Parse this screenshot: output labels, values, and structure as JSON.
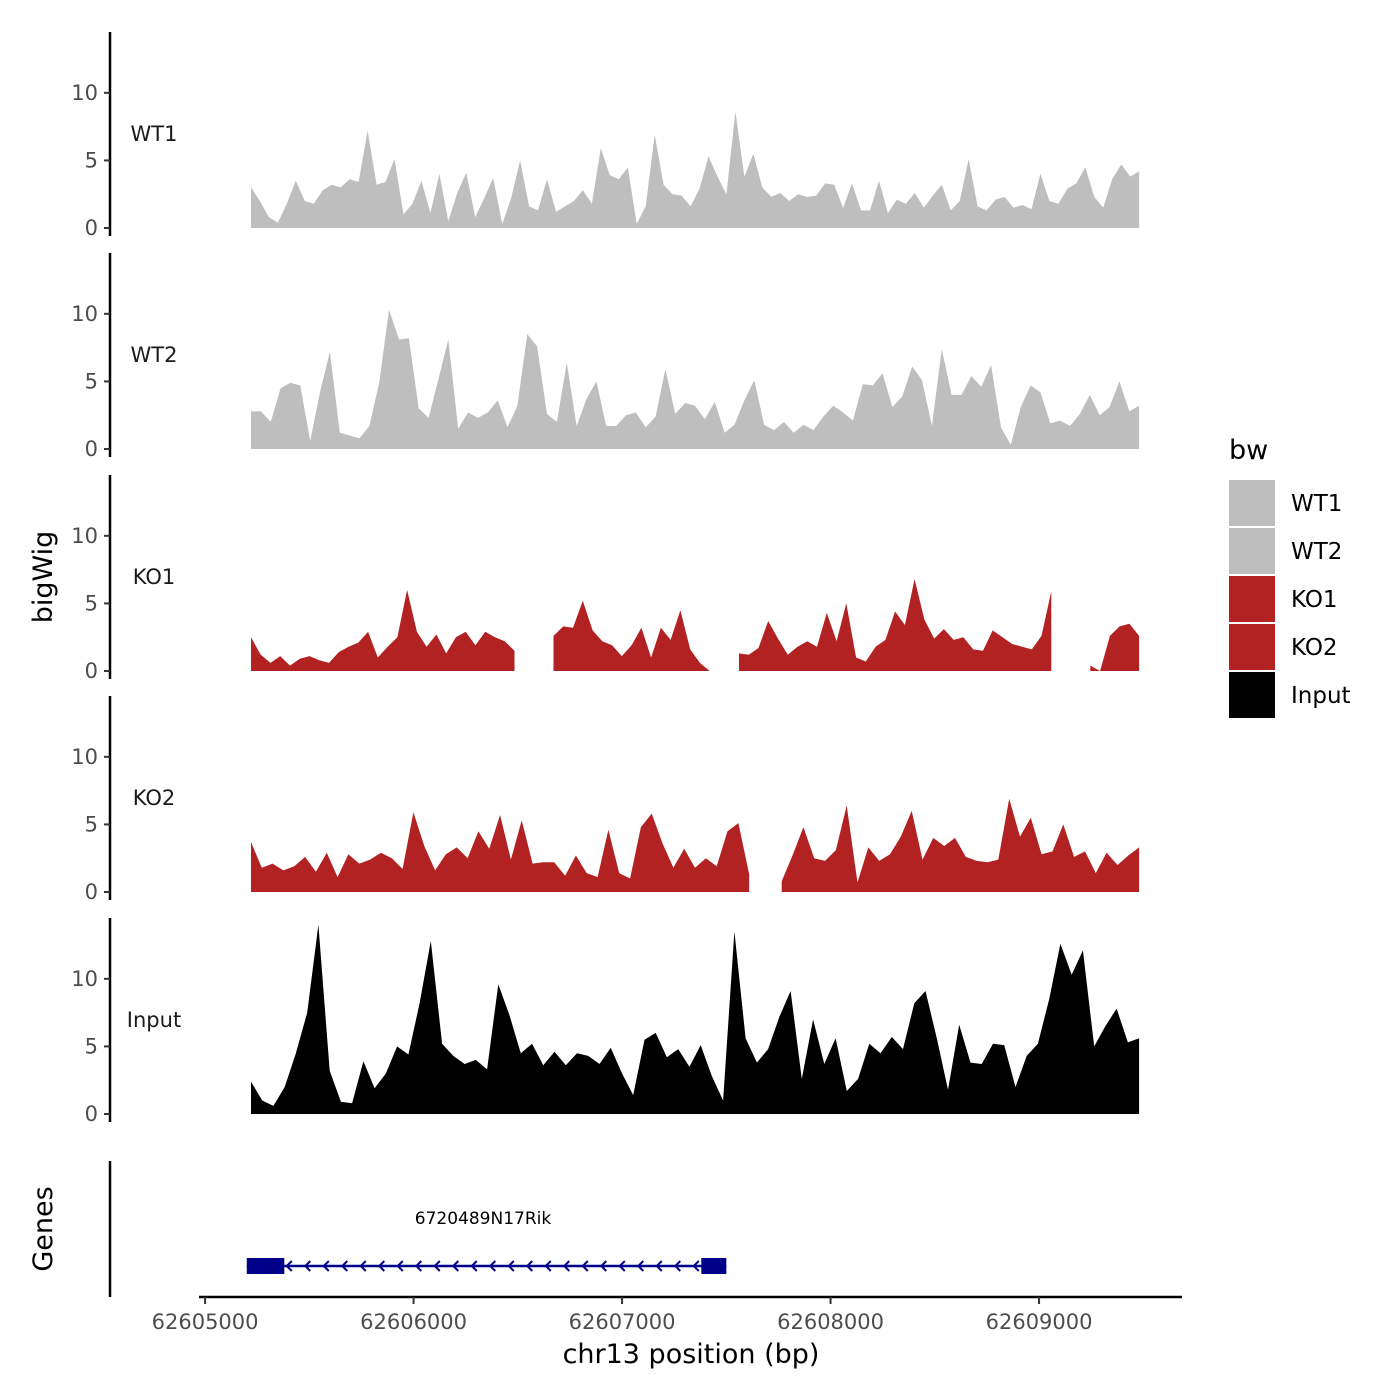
{
  "chart_data": {
    "type": "area",
    "title": "",
    "ylabel": "bigWig",
    "genes_label": "Genes",
    "xlabel": "chr13 position (bp)",
    "xlim": [
      62604990,
      62609700
    ],
    "data_range": [
      62605220,
      62609480
    ],
    "x_ticks": [
      62605000,
      62606000,
      62607000,
      62608000,
      62609000
    ],
    "x_tick_labels": [
      "62605000",
      "62606000",
      "62607000",
      "62608000",
      "62609000"
    ],
    "ylim": [
      0,
      14.5
    ],
    "y_ticks": [
      0,
      5,
      10
    ],
    "y_tick_labels": [
      "0",
      "5",
      "10"
    ],
    "legend": {
      "title": "bw",
      "entries": [
        {
          "label": "WT1",
          "color": "#bebebe"
        },
        {
          "label": "WT2",
          "color": "#bebebe"
        },
        {
          "label": "KO1",
          "color": "#b22222"
        },
        {
          "label": "KO2",
          "color": "#b22222"
        },
        {
          "label": "Input",
          "color": "#000000"
        }
      ]
    },
    "tracks": [
      {
        "name": "WT1",
        "color": "#bebebe",
        "gaps": [],
        "values": [
          3.0,
          2.0,
          0.8,
          0.4,
          1.8,
          3.5,
          2.0,
          1.8,
          2.8,
          3.2,
          3.0,
          3.6,
          3.4,
          7.2,
          3.2,
          3.4,
          5.1,
          1.0,
          1.8,
          3.5,
          1.1,
          4.0,
          0.5,
          2.6,
          4.1,
          0.8,
          2.2,
          3.7,
          0.3,
          2.2,
          5.0,
          1.6,
          1.3,
          3.6,
          1.2,
          1.6,
          2.0,
          2.8,
          1.8,
          5.9,
          3.9,
          3.6,
          4.5,
          0.3,
          1.6,
          6.9,
          3.2,
          2.5,
          2.4,
          1.6,
          2.9,
          5.3,
          3.8,
          2.5,
          8.6,
          3.8,
          5.5,
          3.0,
          2.3,
          2.6,
          2.0,
          2.5,
          2.3,
          2.4,
          3.3,
          3.2,
          1.5,
          3.3,
          1.3,
          1.3,
          3.5,
          1.1,
          2.1,
          1.8,
          2.6,
          1.5,
          2.4,
          3.2,
          1.3,
          2.0,
          5.1,
          1.6,
          1.3,
          2.1,
          2.3,
          1.5,
          1.7,
          1.4,
          4.0,
          2.0,
          1.8,
          2.9,
          3.3,
          4.5,
          2.3,
          1.5,
          3.6,
          4.7,
          3.8,
          4.2
        ]
      },
      {
        "name": "WT2",
        "color": "#bebebe",
        "gaps": [],
        "values": [
          2.8,
          2.8,
          2.0,
          4.5,
          4.9,
          4.7,
          0.6,
          4.2,
          7.2,
          1.2,
          1.0,
          0.8,
          1.7,
          4.9,
          10.3,
          8.1,
          8.2,
          3.0,
          2.3,
          5.2,
          8.1,
          1.5,
          2.7,
          2.3,
          2.7,
          3.6,
          1.6,
          3.2,
          8.5,
          7.6,
          2.6,
          2.0,
          6.4,
          1.7,
          3.7,
          5.0,
          1.7,
          1.7,
          2.5,
          2.7,
          1.6,
          2.4,
          5.9,
          2.6,
          3.4,
          3.2,
          2.2,
          3.5,
          1.2,
          1.8,
          3.6,
          5.1,
          1.8,
          1.4,
          2.0,
          1.2,
          1.8,
          1.4,
          2.4,
          3.2,
          2.7,
          2.1,
          4.8,
          4.7,
          5.6,
          3.1,
          3.9,
          6.1,
          5.1,
          1.7,
          7.4,
          4.0,
          4.0,
          5.4,
          4.6,
          6.2,
          1.6,
          0.3,
          3.1,
          4.7,
          4.2,
          1.9,
          2.1,
          1.7,
          2.6,
          4.0,
          2.5,
          3.1,
          5.0,
          2.8,
          3.2
        ]
      },
      {
        "name": "KO1",
        "color": "#b22222",
        "gaps": [
          [
            62606510,
            62606640
          ],
          [
            62607430,
            62607520
          ],
          [
            62609100,
            62609240
          ]
        ],
        "values": [
          2.5,
          1.2,
          0.6,
          1.1,
          0.4,
          0.9,
          1.1,
          0.8,
          0.6,
          1.4,
          1.8,
          2.1,
          2.9,
          1.0,
          1.8,
          2.5,
          6.0,
          2.9,
          1.8,
          2.7,
          1.3,
          2.5,
          2.9,
          1.9,
          2.9,
          2.5,
          2.2,
          1.5,
          2.2,
          0.8,
          0.0,
          2.6,
          3.3,
          3.2,
          5.2,
          3.0,
          2.2,
          1.9,
          1.1,
          1.9,
          3.2,
          1.0,
          3.2,
          2.3,
          4.5,
          1.6,
          0.6,
          0.0,
          1.2,
          0.8,
          1.3,
          1.2,
          1.7,
          3.7,
          2.4,
          1.2,
          1.8,
          2.2,
          1.8,
          4.3,
          2.2,
          5.0,
          1.0,
          0.7,
          1.8,
          2.3,
          4.4,
          3.4,
          6.8,
          3.8,
          2.4,
          3.1,
          2.3,
          2.5,
          1.6,
          1.5,
          3.0,
          2.5,
          2.0,
          1.8,
          1.6,
          2.6,
          5.9,
          3.2,
          1.8,
          1.6,
          0.4,
          0.0,
          2.6,
          3.3,
          3.5,
          2.6
        ]
      },
      {
        "name": "KO2",
        "color": "#b22222",
        "gaps": [
          [
            62607660,
            62607720
          ]
        ],
        "values": [
          3.7,
          1.8,
          2.1,
          1.6,
          1.9,
          2.6,
          1.5,
          2.9,
          1.1,
          2.8,
          2.1,
          2.4,
          2.9,
          2.5,
          1.7,
          5.9,
          3.4,
          1.6,
          2.8,
          3.3,
          2.5,
          4.5,
          3.2,
          5.7,
          2.4,
          5.3,
          2.1,
          2.2,
          2.2,
          1.2,
          2.7,
          1.4,
          1.1,
          4.6,
          1.4,
          1.0,
          4.8,
          5.8,
          3.6,
          1.8,
          3.2,
          1.8,
          2.5,
          1.9,
          4.5,
          5.1,
          1.3,
          4.1,
          0.2,
          0.8,
          2.7,
          4.8,
          2.5,
          2.3,
          3.1,
          6.4,
          0.7,
          3.3,
          2.3,
          2.8,
          4.1,
          6.0,
          2.4,
          4.0,
          3.4,
          4.0,
          2.6,
          2.3,
          2.2,
          2.4,
          6.9,
          4.1,
          5.5,
          2.8,
          3.0,
          5.0,
          2.6,
          3.0,
          1.4,
          2.9,
          2.0,
          2.7,
          3.3
        ]
      },
      {
        "name": "Input",
        "color": "#000000",
        "gaps": [],
        "values": [
          2.4,
          1.0,
          0.6,
          2.0,
          4.5,
          7.5,
          14.0,
          3.2,
          0.9,
          0.8,
          3.9,
          1.9,
          3.0,
          5.0,
          4.4,
          8.2,
          12.8,
          5.2,
          4.3,
          3.7,
          4.0,
          3.3,
          9.6,
          7.3,
          4.5,
          5.2,
          3.6,
          4.6,
          3.6,
          4.5,
          4.3,
          3.7,
          4.9,
          3.0,
          1.4,
          5.5,
          6.0,
          4.2,
          4.8,
          3.5,
          5.1,
          2.8,
          1.0,
          13.5,
          5.6,
          3.8,
          4.8,
          7.2,
          9.1,
          2.6,
          7.0,
          3.7,
          5.6,
          1.7,
          2.6,
          5.2,
          4.5,
          5.7,
          4.8,
          8.2,
          9.1,
          5.6,
          1.8,
          6.6,
          3.8,
          3.7,
          5.2,
          5.1,
          2.0,
          4.3,
          5.2,
          8.5,
          12.6,
          10.3,
          12.1,
          5.0,
          6.5,
          7.8,
          5.3,
          5.6
        ]
      }
    ],
    "gene": {
      "name": "6720489N17Rik",
      "start": 62605200,
      "end": 62607500,
      "exons": [
        [
          62605200,
          62605380
        ],
        [
          62607380,
          62607500
        ]
      ],
      "strand": "-",
      "color": "#00008b"
    }
  }
}
